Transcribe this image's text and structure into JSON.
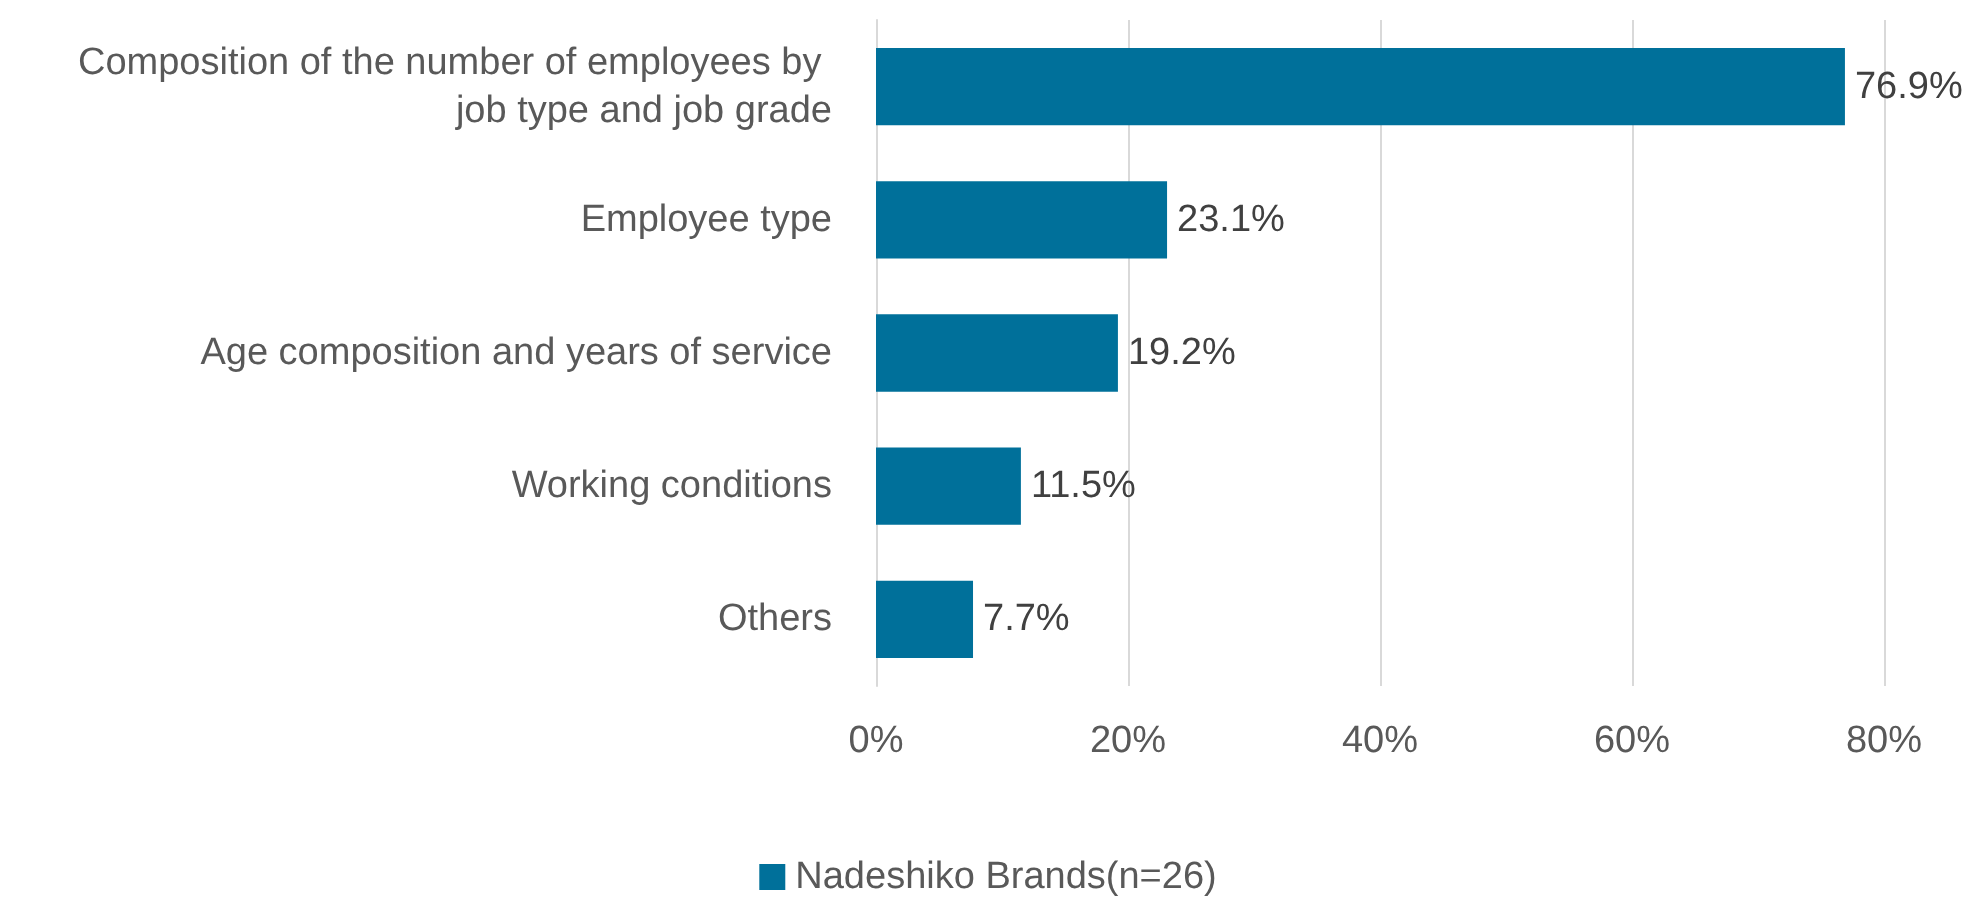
{
  "chart_data": {
    "type": "bar",
    "orientation": "horizontal",
    "categories": [
      "Composition of the number of employees by job type and job grade",
      "Employee type",
      "Age composition and years of service",
      "Working conditions",
      "Others"
    ],
    "series": [
      {
        "name": "Nadeshiko Brands(n=26)",
        "color": "#00709a",
        "values": [
          76.9,
          23.1,
          19.2,
          11.5,
          7.7
        ],
        "value_labels": [
          "76.9%",
          "23.1%",
          "19.2%",
          "11.5%",
          "7.7%"
        ]
      }
    ],
    "xlim": [
      0,
      80
    ],
    "xticks": [
      {
        "value": 0,
        "label": "0%"
      },
      {
        "value": 20,
        "label": "20%"
      },
      {
        "value": 40,
        "label": "40%"
      },
      {
        "value": 60,
        "label": "60%"
      },
      {
        "value": 80,
        "label": "80%"
      }
    ],
    "grid": "x",
    "legend": "bottom"
  }
}
